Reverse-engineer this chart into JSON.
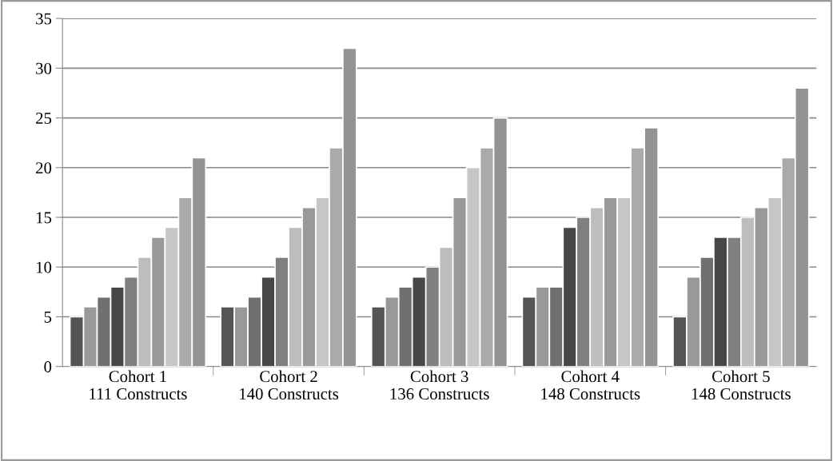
{
  "chart_data": {
    "type": "bar",
    "categories": [
      "Cohort 1\n111 Constructs",
      "Cohort 2\n140 Constructs",
      "Cohort 3\n136 Constructs",
      "Cohort 4\n148 Constructs",
      "Cohort 5\n148 Constructs"
    ],
    "series": [
      {
        "color": "#555555",
        "values": [
          5,
          6,
          6,
          7,
          5
        ]
      },
      {
        "color": "#999999",
        "values": [
          6,
          6,
          7,
          8,
          9
        ]
      },
      {
        "color": "#707070",
        "values": [
          7,
          7,
          8,
          8,
          11
        ]
      },
      {
        "color": "#474747",
        "values": [
          8,
          9,
          9,
          14,
          13
        ]
      },
      {
        "color": "#808080",
        "values": [
          9,
          11,
          10,
          15,
          13
        ]
      },
      {
        "color": "#bdbdbd",
        "values": [
          11,
          14,
          12,
          16,
          15
        ]
      },
      {
        "color": "#999999",
        "values": [
          13,
          16,
          17,
          17,
          16
        ]
      },
      {
        "color": "#c6c6c6",
        "values": [
          14,
          17,
          20,
          17,
          17
        ]
      },
      {
        "color": "#aaaaaa",
        "values": [
          17,
          22,
          22,
          22,
          21
        ]
      },
      {
        "color": "#939393",
        "values": [
          21,
          32,
          25,
          24,
          28
        ]
      }
    ],
    "ylim": [
      0,
      35
    ],
    "yticks": [
      0,
      5,
      10,
      15,
      20,
      25,
      30,
      35
    ],
    "grid": "y"
  }
}
